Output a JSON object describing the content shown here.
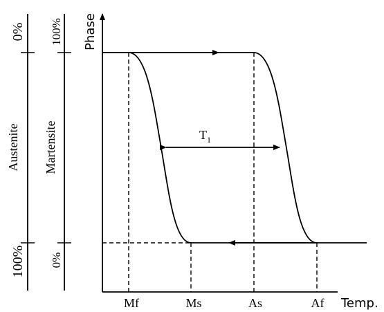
{
  "axes": {
    "y_label": "Phase",
    "x_label": "Temp."
  },
  "x_ticks": [
    "Mf",
    "Ms",
    "As",
    "Af"
  ],
  "hysteresis_label": {
    "main": "T",
    "subscript": "1"
  },
  "austenite_scale": {
    "title": "Austenite",
    "top": "0%",
    "bottom": "100%"
  },
  "martensite_scale": {
    "title": "Martensite",
    "top": "100%",
    "bottom": "0%"
  }
}
